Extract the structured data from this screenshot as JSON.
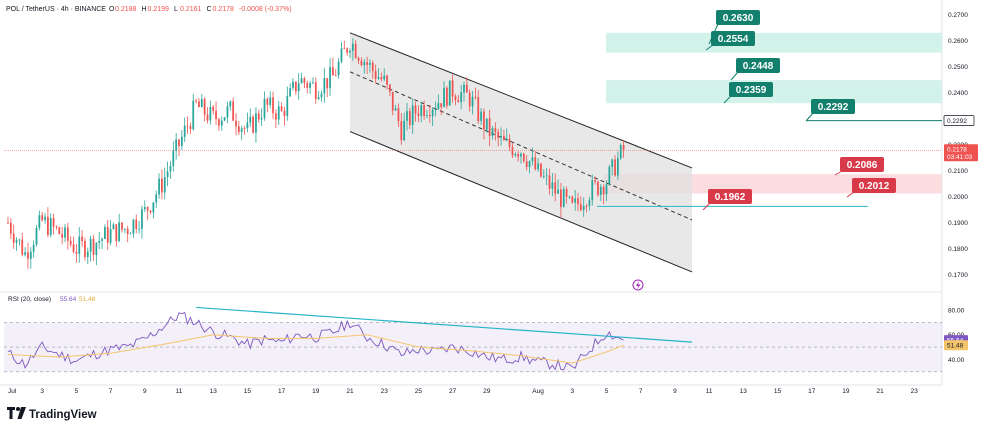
{
  "header": {
    "symbol": "POL / TetherUS · 4h · BINANCE",
    "ohlc": [
      {
        "label": "O",
        "value": "0.2188"
      },
      {
        "label": "H",
        "value": "0.2199"
      },
      {
        "label": "L",
        "value": "0.2161"
      },
      {
        "label": "C",
        "value": "0.2178"
      },
      {
        "label": "",
        "value": "-0.0008 (-0.37%)"
      }
    ]
  },
  "branding": {
    "logo_text": "TradingView"
  },
  "colors": {
    "up": "#26a69a",
    "down": "#ef5350",
    "rsi_line": "#7e57c2",
    "rsi_ma": "#f5c56b",
    "trendline": "#26b5c8",
    "channel_fill": "#e0e0e0",
    "green_zone": "#d3f2ea",
    "red_zone": "#fbdcdf",
    "tag_green": "#13806d",
    "tag_red": "#d93a49",
    "current_price_line": "#ef5350"
  },
  "chart_data": [
    {
      "type": "candlestick",
      "title": "POL / TetherUS · 4h · BINANCE",
      "ylim": [
        0.1675,
        0.271
      ],
      "y_ticks": [
        "0.2700",
        "0.2600",
        "0.2500",
        "0.2400",
        "0.2300",
        "0.2200",
        "0.2100",
        "0.2000",
        "0.1900",
        "0.1800",
        "0.1700"
      ],
      "x_ticks": [
        "Jul",
        "3",
        "5",
        "7",
        "9",
        "11",
        "13",
        "15",
        "17",
        "19",
        "21",
        "23",
        "25",
        "27",
        "29",
        "Aug",
        "3",
        "5",
        "7",
        "9",
        "11",
        "13",
        "15",
        "17",
        "19",
        "21",
        "23"
      ],
      "grid": false,
      "current_price": {
        "value": 0.2178,
        "label": "0.2178",
        "countdown": "03:41:03"
      },
      "close_path": [
        [
          "Jul 1",
          0.19
        ],
        [
          "Jul 2",
          0.178
        ],
        [
          "Jul 3",
          0.1905
        ],
        [
          "Jul 4",
          0.186
        ],
        [
          "Jul 5",
          0.18
        ],
        [
          "Jul 6",
          0.182
        ],
        [
          "Jul 7",
          0.186
        ],
        [
          "Jul 8",
          0.188
        ],
        [
          "Jul 9",
          0.194
        ],
        [
          "Jul 10",
          0.205
        ],
        [
          "Jul 11",
          0.22
        ],
        [
          "Jul 12",
          0.235
        ],
        [
          "Jul 13",
          0.23
        ],
        [
          "Jul 14",
          0.233
        ],
        [
          "Jul 15",
          0.225
        ],
        [
          "Jul 16",
          0.235
        ],
        [
          "Jul 17",
          0.232
        ],
        [
          "Jul 18",
          0.245
        ],
        [
          "Jul 19",
          0.242
        ],
        [
          "Jul 20",
          0.246
        ],
        [
          "Jul 21",
          0.26
        ],
        [
          "Jul 22",
          0.251
        ],
        [
          "Jul 23",
          0.244
        ],
        [
          "Jul 24",
          0.226
        ],
        [
          "Jul 25",
          0.234
        ],
        [
          "Jul 26",
          0.236
        ],
        [
          "Jul 27",
          0.241
        ],
        [
          "Jul 28",
          0.238
        ],
        [
          "Jul 29",
          0.226
        ],
        [
          "Jul 30",
          0.22
        ],
        [
          "Jul 31",
          0.218
        ],
        [
          "Aug 1",
          0.209
        ],
        [
          "Aug 2",
          0.202
        ],
        [
          "Aug 3",
          0.195
        ],
        [
          "Aug 4",
          0.202
        ],
        [
          "Aug 5",
          0.206
        ],
        [
          "Aug 6",
          0.218
        ]
      ],
      "channel": {
        "upper": [
          [
            "Jul 21",
            0.263
          ],
          [
            "Aug 10",
            0.211
          ]
        ],
        "mid": [
          [
            "Jul 21",
            0.248
          ],
          [
            "Aug 10",
            0.191
          ]
        ],
        "lower": [
          [
            "Jul 21",
            0.225
          ],
          [
            "Aug 10",
            0.171
          ]
        ]
      },
      "zones": [
        {
          "kind": "target",
          "from": 0.2554,
          "to": 0.263
        },
        {
          "kind": "target",
          "from": 0.2359,
          "to": 0.2448
        },
        {
          "kind": "support",
          "from": 0.2012,
          "to": 0.2086
        }
      ],
      "levels": [
        {
          "value": 0.263,
          "label": "0.2630",
          "color": "green"
        },
        {
          "value": 0.2554,
          "label": "0.2554",
          "color": "green"
        },
        {
          "value": 0.2448,
          "label": "0.2448",
          "color": "green"
        },
        {
          "value": 0.2359,
          "label": "0.2359",
          "color": "green"
        },
        {
          "value": 0.2292,
          "label": "0.2292",
          "color": "green",
          "axis_label": "0.2292"
        },
        {
          "value": 0.2086,
          "label": "0.2086",
          "color": "red"
        },
        {
          "value": 0.2012,
          "label": "0.2012",
          "color": "red"
        },
        {
          "value": 0.1962,
          "label": "0.1962",
          "color": "red"
        }
      ]
    },
    {
      "type": "line",
      "title": "RSI (20, close)",
      "values_label": [
        "55.64",
        "51.48"
      ],
      "ylim": [
        25,
        88
      ],
      "y_ticks": [
        "80.00",
        "60.00",
        "40.00"
      ],
      "bands": [
        30,
        70
      ],
      "series": [
        {
          "name": "RSI",
          "points": [
            [
              "Jul 1",
              45
            ],
            [
              "Jul 2",
              36
            ],
            [
              "Jul 3",
              50
            ],
            [
              "Jul 4",
              44
            ],
            [
              "Jul 5",
              39
            ],
            [
              "Jul 6",
              44
            ],
            [
              "Jul 7",
              48
            ],
            [
              "Jul 8",
              50
            ],
            [
              "Jul 9",
              56
            ],
            [
              "Jul 10",
              66
            ],
            [
              "Jul 11",
              76
            ],
            [
              "Jul 12",
              70
            ],
            [
              "Jul 13",
              62
            ],
            [
              "Jul 14",
              58
            ],
            [
              "Jul 15",
              52
            ],
            [
              "Jul 16",
              56
            ],
            [
              "Jul 17",
              54
            ],
            [
              "Jul 18",
              60
            ],
            [
              "Jul 19",
              58
            ],
            [
              "Jul 20",
              62
            ],
            [
              "Jul 21",
              70
            ],
            [
              "Jul 22",
              58
            ],
            [
              "Jul 23",
              52
            ],
            [
              "Jul 24",
              44
            ],
            [
              "Jul 25",
              48
            ],
            [
              "Jul 26",
              46
            ],
            [
              "Jul 27",
              50
            ],
            [
              "Jul 28",
              47
            ],
            [
              "Jul 29",
              42
            ],
            [
              "Jul 30",
              40
            ],
            [
              "Jul 31",
              42
            ],
            [
              "Aug 1",
              38
            ],
            [
              "Aug 2",
              36
            ],
            [
              "Aug 3",
              32
            ],
            [
              "Aug 4",
              48
            ],
            [
              "Aug 5",
              62
            ],
            [
              "Aug 6",
              55.64
            ]
          ]
        },
        {
          "name": "RSI-based MA",
          "points": [
            [
              "Jul 1",
              44
            ],
            [
              "Jul 4",
              42
            ],
            [
              "Jul 7",
              45
            ],
            [
              "Jul 10",
              52
            ],
            [
              "Jul 13",
              60
            ],
            [
              "Jul 16",
              57
            ],
            [
              "Jul 19",
              57
            ],
            [
              "Jul 22",
              60
            ],
            [
              "Jul 25",
              50
            ],
            [
              "Jul 28",
              47
            ],
            [
              "Jul 31",
              43
            ],
            [
              "Aug 3",
              37
            ],
            [
              "Aug 5",
              46
            ],
            [
              "Aug 6",
              51.48
            ]
          ]
        }
      ],
      "trendline": [
        [
          "Jul 12",
          82
        ],
        [
          "Aug 10",
          54
        ]
      ]
    }
  ]
}
